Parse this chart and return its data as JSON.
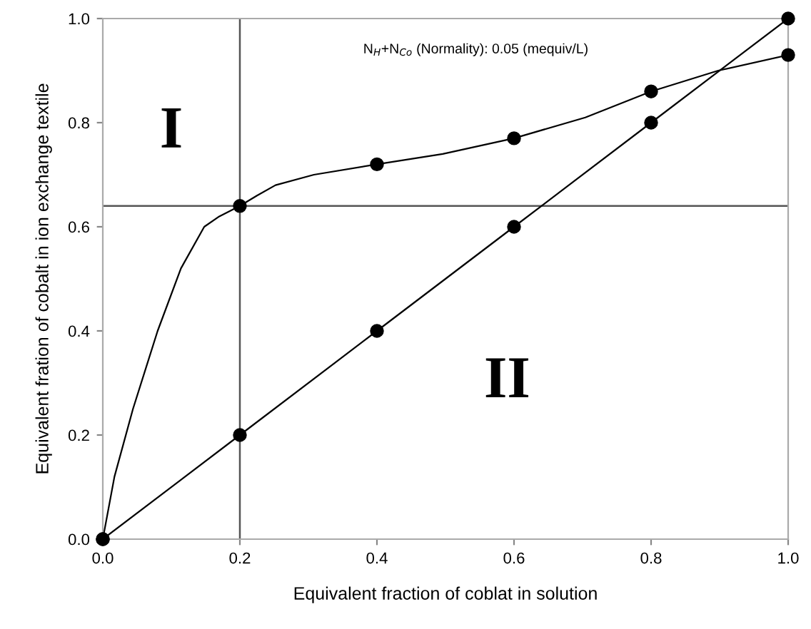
{
  "chart_data": {
    "type": "line",
    "xlabel": "Equivalent fraction of coblat in solution",
    "ylabel": "Equivalent fration of cobalt in ion exchange textile",
    "x": [
      0.0,
      0.2,
      0.4,
      0.6,
      0.8,
      1.0
    ],
    "series": [
      {
        "type": "line",
        "color": "#000000",
        "marker": "none",
        "x": [
          0.0,
          0.017,
          0.044,
          0.08,
          0.114,
          0.148,
          0.17,
          0.2,
          0.225,
          0.252,
          0.308,
          0.4,
          0.496,
          0.6,
          0.704,
          0.8,
          0.898,
          1.0
        ],
        "values": [
          0.0,
          0.12,
          0.25,
          0.4,
          0.52,
          0.6,
          0.62,
          0.64,
          0.66,
          0.68,
          0.7,
          0.72,
          0.74,
          0.77,
          0.81,
          0.86,
          0.9,
          0.93
        ]
      },
      {
        "type": "scatter",
        "color": "#000000",
        "values": [
          0.0,
          0.64,
          0.72,
          0.77,
          0.86,
          0.93
        ]
      },
      {
        "color": "#000000",
        "values": [
          0.0,
          0.2,
          0.4,
          0.6,
          0.8,
          1.0
        ]
      }
    ],
    "xlim": [
      0.0,
      1.0
    ],
    "ylim": [
      0.0,
      1.0
    ],
    "xticks": [
      {
        "value": 0.0,
        "label": "0.0"
      },
      {
        "value": 0.2,
        "label": "0.2"
      },
      {
        "value": 0.4,
        "label": "0.4"
      },
      {
        "value": 0.6,
        "label": "0.6"
      },
      {
        "value": 0.8,
        "label": "0.8"
      },
      {
        "value": 1.0,
        "label": "1.0"
      }
    ],
    "yticks": [
      {
        "value": 0.0,
        "label": "0.0"
      },
      {
        "value": 0.2,
        "label": "0.2"
      },
      {
        "value": 0.4,
        "label": "0.4"
      },
      {
        "value": 0.6,
        "label": "0.6"
      },
      {
        "value": 0.8,
        "label": "0.8"
      },
      {
        "value": 1.0,
        "label": "1.0"
      }
    ],
    "ref_lines": [
      {
        "axis": "x",
        "value": 0.2,
        "color": "#555555"
      },
      {
        "axis": "y",
        "value": 0.64,
        "color": "#555555"
      }
    ],
    "annotations": [
      "N$_{H}$+N$_{Co}$ (Normality): 0.05 (mequiv/L)",
      "I",
      "II"
    ],
    "marker": "circle",
    "line_style": "solid",
    "grid": false
  }
}
